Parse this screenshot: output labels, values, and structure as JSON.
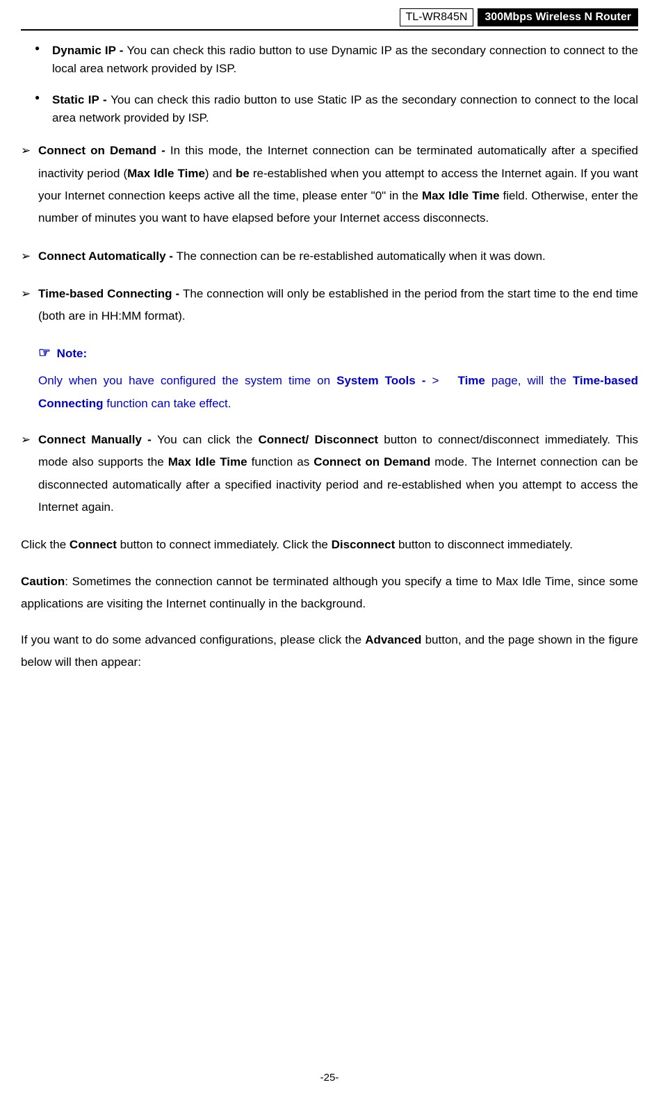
{
  "header": {
    "model": "TL-WR845N",
    "title": "300Mbps Wireless N Router"
  },
  "bullets_sub": [
    {
      "label": "Dynamic IP - ",
      "text": "You can check this radio button to use Dynamic IP as the secondary connection to connect to the local area network provided by ISP."
    },
    {
      "label": "Static IP - ",
      "text": "You can check this radio button to use Static IP as the secondary connection to connect to the local area network provided by ISP."
    }
  ],
  "bullet_cod": {
    "label": "Connect on Demand - ",
    "part1": "In this mode, the Internet connection can be terminated automatically after a specified inactivity period (",
    "mit1": "Max Idle Time",
    "part2": ") and ",
    "be": "be",
    "part3": " re-established when you attempt to access the Internet again. If you want your Internet connection keeps active all the time, please enter \"0\" in the ",
    "mit2": "Max Idle Time",
    "part4": " field. Otherwise, enter the number of minutes you want to have elapsed before your Internet access disconnects."
  },
  "bullet_ca": {
    "label": "Connect Automatically - ",
    "text": "The connection can be re-established automatically when it was down."
  },
  "bullet_tbc": {
    "label": "Time-based Connecting - ",
    "text": "The connection will only be established in the period from the start time to the end time (both are in HH:MM format)."
  },
  "note": {
    "icon": "☞",
    "label": "Note:",
    "pre": "Only when you have configured the system time on ",
    "st": "System Tools - ",
    "gt": ">",
    "time": "Time",
    "mid": " page, will the ",
    "tbc": "Time-based Connecting",
    "post": " function can take effect."
  },
  "bullet_cm": {
    "label": "Connect Manually - ",
    "p1": "You can click the ",
    "cd": "Connect/ Disconnect",
    "p2": " button to connect/disconnect immediately. This mode also supports the ",
    "mit": "Max Idle Time",
    "p3": " function as ",
    "cod": "Connect on Demand",
    "p4": " mode. The Internet connection can be disconnected automatically after a specified inactivity period and re-established when you attempt to access the Internet again."
  },
  "para_click": {
    "p1": "Click the ",
    "c": "Connect",
    "p2": " button to connect immediately. Click the ",
    "d": "Disconnect",
    "p3": " button to disconnect immediately."
  },
  "para_caution": {
    "label": "Caution",
    "text": ": Sometimes the connection cannot be terminated although you specify a time to Max Idle Time, since some applications are visiting the Internet continually in the background."
  },
  "para_adv": {
    "p1": "If you want to do some advanced configurations, please click the ",
    "adv": "Advanced",
    "p2": " button, and the page shown in the figure below will then appear:"
  },
  "page_number": "-25-"
}
